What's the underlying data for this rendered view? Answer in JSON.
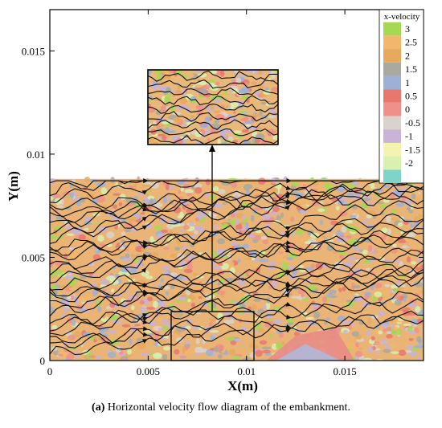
{
  "chart_data": {
    "type": "heatmap",
    "title": "",
    "xlabel": "X(m)",
    "ylabel": "Y(m)",
    "xlim": [
      0,
      0.019
    ],
    "ylim": [
      0,
      0.017
    ],
    "x_ticks": [
      0,
      0.005,
      0.01,
      0.015
    ],
    "x_tick_labels": [
      "0",
      "0.005",
      "0.01",
      "0.015"
    ],
    "y_ticks": [
      0,
      0.005,
      0.01,
      0.015
    ],
    "y_tick_labels": [
      "0",
      "0.005",
      "0.01",
      "0.015"
    ],
    "field_extent": {
      "x": [
        0,
        0.019
      ],
      "y": [
        0,
        0.0088
      ]
    },
    "inset_source_region": {
      "x": [
        0.006,
        0.0101
      ],
      "y": [
        0.0001,
        0.0024
      ]
    },
    "colorbar": {
      "title": "x-velocity",
      "levels": [
        "3",
        "2.5",
        "2",
        "1.5",
        "1",
        "0.5",
        "0",
        "-0.5",
        "-1",
        "-1.5",
        "-2"
      ],
      "colors": [
        "#a6d854",
        "#f2b66d",
        "#e8a95e",
        "#a9a9a0",
        "#9db0d6",
        "#e8786e",
        "#f0908a",
        "#d9d3cc",
        "#c9b3d6",
        "#f5f3b0",
        "#d8f0b0",
        "#7fd3c8"
      ],
      "placement": "top-right"
    },
    "streamlines": "black flow streamlines with arrowheads over the x-velocity contour field"
  },
  "caption": {
    "label": "(a)",
    "text": " Horizontal velocity flow diagram of the embankment."
  }
}
